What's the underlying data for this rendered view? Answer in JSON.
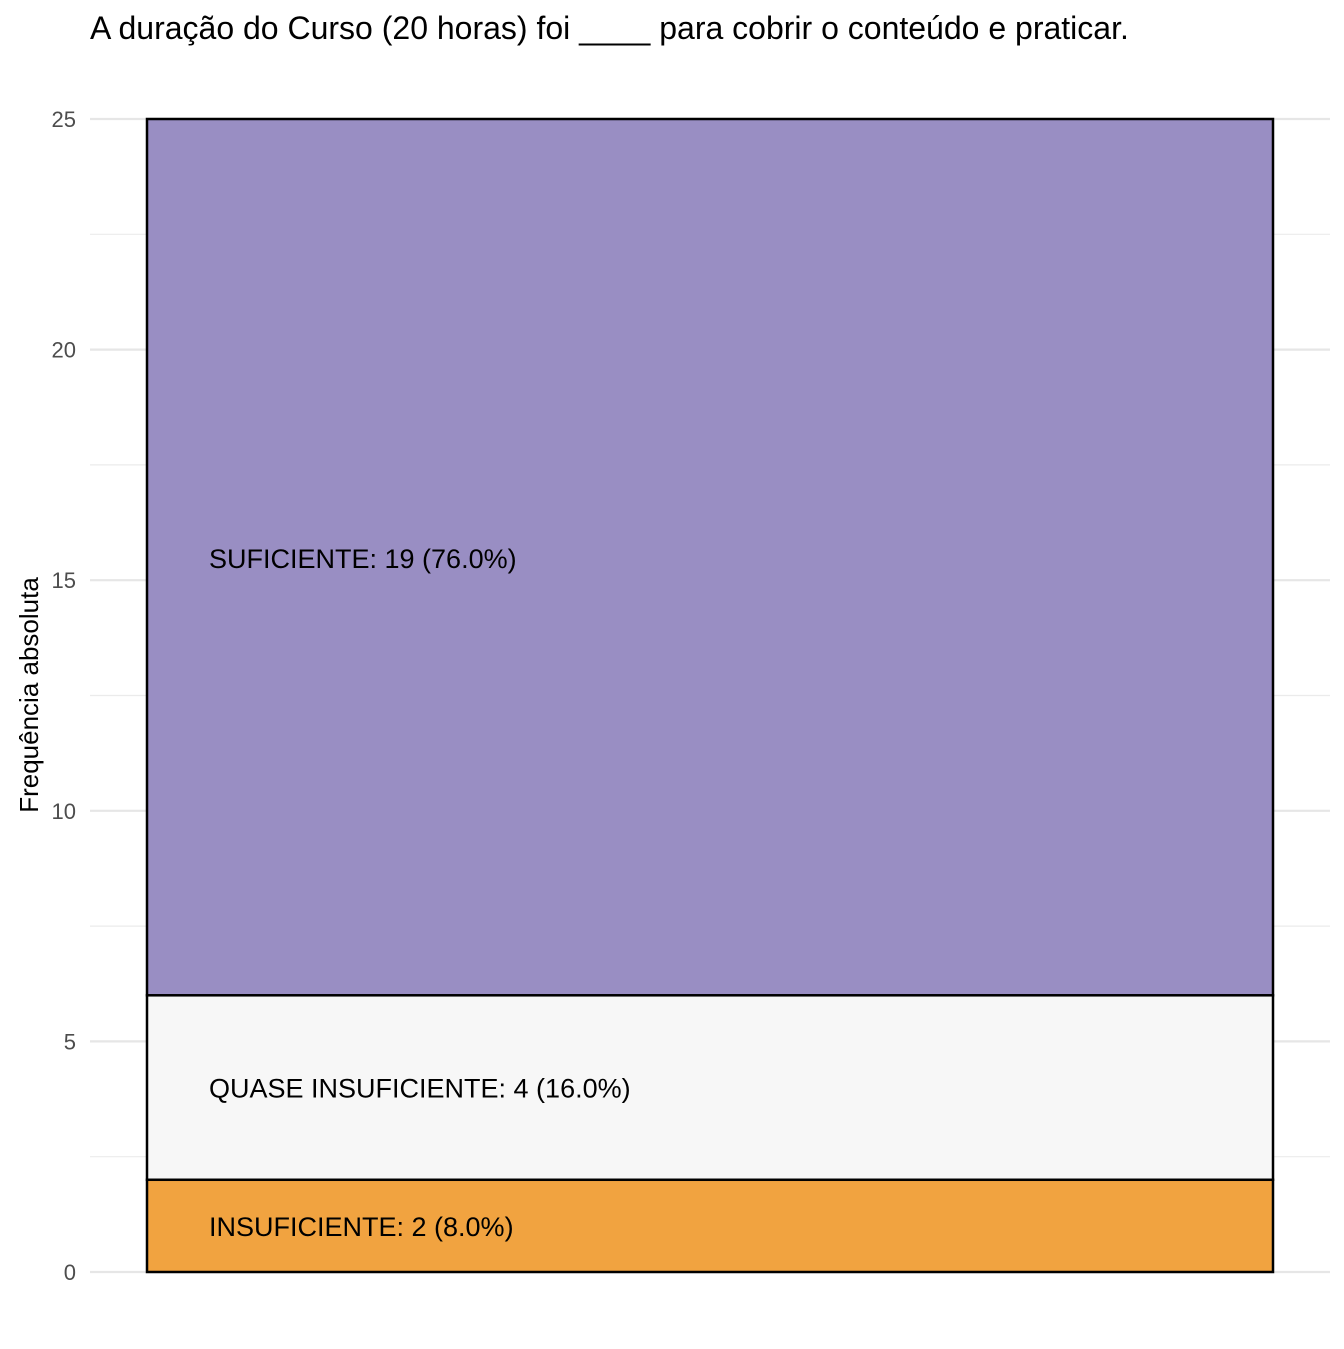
{
  "chart_data": {
    "type": "bar",
    "title": "A duração do Curso (20 horas) foi ____ para cobrir o conteúdo e praticar.",
    "xlabel": "",
    "ylabel": "Frequência absoluta",
    "ylim": [
      0,
      25
    ],
    "yticks": [
      "0",
      "5",
      "10",
      "15",
      "20",
      "25"
    ],
    "grid": true,
    "stacked": true,
    "series": [
      {
        "name": "INSUFICIENTE",
        "value": 2,
        "percent": 8.0,
        "label": "INSUFICIENTE: 2 (8.0%)",
        "color": "#f1a340"
      },
      {
        "name": "QUASE INSUFICIENTE",
        "value": 4,
        "percent": 16.0,
        "label": "QUASE INSUFICIENTE: 4 (16.0%)",
        "color": "#f7f7f7"
      },
      {
        "name": "SUFICIENTE",
        "value": 19,
        "percent": 76.0,
        "label": "SUFICIENTE: 19 (76.0%)",
        "color": "#998ec3"
      }
    ]
  }
}
